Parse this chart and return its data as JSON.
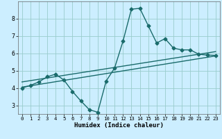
{
  "title": "",
  "xlabel": "Humidex (Indice chaleur)",
  "bg_color": "#cceeff",
  "line_color": "#1a6b6b",
  "grid_color": "#99cccc",
  "xlim": [
    -0.5,
    23.5
  ],
  "ylim": [
    2.5,
    9.0
  ],
  "yticks": [
    3,
    4,
    5,
    6,
    7,
    8
  ],
  "xticks": [
    0,
    1,
    2,
    3,
    4,
    5,
    6,
    7,
    8,
    9,
    10,
    11,
    12,
    13,
    14,
    15,
    16,
    17,
    18,
    19,
    20,
    21,
    22,
    23
  ],
  "line1_x": [
    0,
    1,
    2,
    3,
    4,
    5,
    6,
    7,
    8,
    9,
    10,
    11,
    12,
    13,
    14,
    15,
    16,
    17,
    18,
    19,
    20,
    21,
    22,
    23
  ],
  "line1_y": [
    4.0,
    4.15,
    4.35,
    4.65,
    4.8,
    4.45,
    3.8,
    3.25,
    2.75,
    2.6,
    4.4,
    5.15,
    6.7,
    8.55,
    8.6,
    7.6,
    6.6,
    6.85,
    6.3,
    6.2,
    6.2,
    5.95,
    5.9,
    5.88
  ],
  "line2_x": [
    0,
    23
  ],
  "line2_y": [
    4.05,
    5.85
  ],
  "line3_x": [
    0,
    23
  ],
  "line3_y": [
    4.35,
    6.1
  ],
  "marker": "D",
  "markersize": 2.5,
  "linewidth": 1.0
}
